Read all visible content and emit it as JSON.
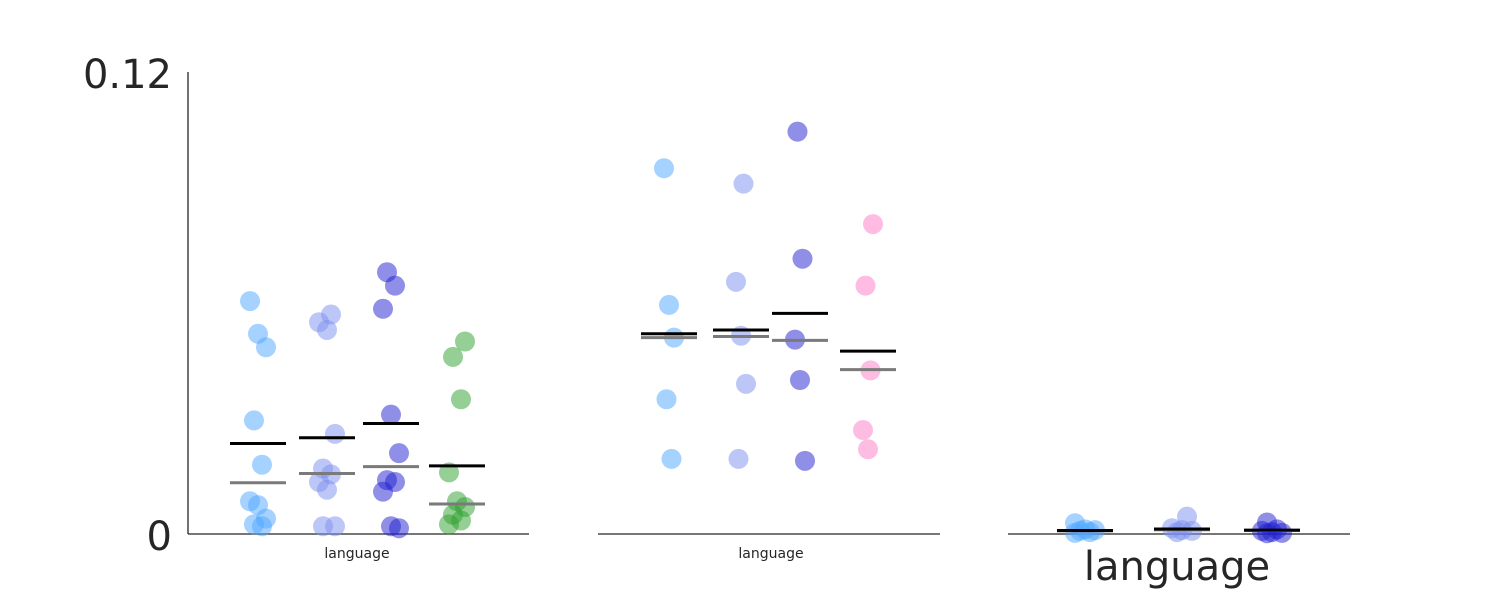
{
  "colors": {
    "light_blue": "#4da6ff",
    "periwinkle": "#7b8ff0",
    "blue": "#2020d0",
    "green": "#2ca02c",
    "pink": "#ff79c6",
    "mean_line": "#000000",
    "median_line": "#7a7a7a"
  },
  "chart_data": [
    {
      "type": "scatter",
      "y_ticks": [
        "0",
        "0.12"
      ],
      "ylim": [
        0,
        0.12
      ],
      "xlabel": "language",
      "groups": [
        {
          "color": "light_blue",
          "mean": 0.0235,
          "median": 0.0133,
          "points": [
            0.0605,
            0.052,
            0.0485,
            0.0295,
            0.018,
            0.0085,
            0.0075,
            0.004,
            0.0025,
            0.002
          ]
        },
        {
          "color": "periwinkle",
          "mean": 0.025,
          "median": 0.0157,
          "points": [
            0.057,
            0.055,
            0.053,
            0.026,
            0.017,
            0.0155,
            0.0135,
            0.0115,
            0.002,
            0.002
          ]
        },
        {
          "color": "blue",
          "mean": 0.0287,
          "median": 0.0175,
          "points": [
            0.068,
            0.0645,
            0.0585,
            0.031,
            0.021,
            0.014,
            0.0135,
            0.011,
            0.002,
            0.0015
          ]
        },
        {
          "color": "green",
          "mean": 0.0177,
          "median": 0.0078,
          "points": [
            0.05,
            0.046,
            0.035,
            0.016,
            0.0085,
            0.007,
            0.005,
            0.0035,
            0.0025
          ]
        }
      ]
    },
    {
      "type": "scatter",
      "ylim": [
        0,
        0.12
      ],
      "xlabel": "language",
      "groups": [
        {
          "color": "light_blue",
          "mean": 0.052,
          "median": 0.051,
          "points": [
            0.095,
            0.0595,
            0.051,
            0.035,
            0.0195
          ]
        },
        {
          "color": "periwinkle",
          "mean": 0.053,
          "median": 0.0513,
          "points": [
            0.091,
            0.0655,
            0.0515,
            0.039,
            0.0195
          ]
        },
        {
          "color": "blue",
          "mean": 0.0573,
          "median": 0.0503,
          "points": [
            0.1045,
            0.0715,
            0.0505,
            0.04,
            0.019
          ]
        },
        {
          "color": "pink",
          "mean": 0.0475,
          "median": 0.0427,
          "points": [
            0.0805,
            0.0645,
            0.0425,
            0.027,
            0.022
          ]
        }
      ]
    },
    {
      "type": "scatter",
      "ylim": [
        0,
        0.12
      ],
      "xlabel": "language",
      "groups": [
        {
          "color": "light_blue",
          "mean": 0.0009,
          "median": 0.0008,
          "points": [
            0.0028,
            0.0012,
            0.001,
            0.0008,
            0.0005,
            0.0003
          ]
        },
        {
          "color": "periwinkle",
          "mean": 0.0013,
          "median": 0.0011,
          "points": [
            0.0045,
            0.0015,
            0.001,
            0.0008,
            0.0005
          ]
        },
        {
          "color": "blue",
          "mean": 0.001,
          "median": 0.0009,
          "points": [
            0.003,
            0.0012,
            0.0008,
            0.0005,
            0.0003,
            0.0002
          ]
        }
      ]
    }
  ]
}
